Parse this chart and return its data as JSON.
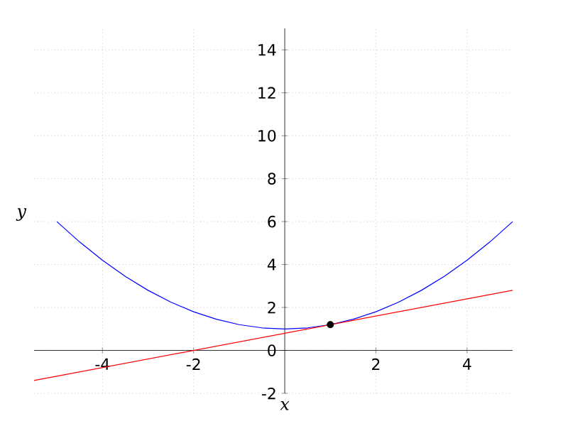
{
  "chart_data": {
    "type": "line",
    "xlabel": "x",
    "ylabel": "y",
    "series": [
      {
        "color": "#0000ff",
        "marker": "none",
        "x": [
          -5,
          -4.5,
          -4,
          -3.5,
          -3,
          -2.5,
          -2,
          -1.5,
          -1,
          -0.5,
          0,
          0.5,
          1,
          1.5,
          2,
          2.5,
          3,
          3.5,
          4,
          4.5,
          5
        ],
        "values": [
          6,
          5.05,
          4.2,
          3.45,
          2.8,
          2.25,
          1.8,
          1.45,
          1.2,
          1.05,
          1,
          1.05,
          1.2,
          1.45,
          1.8,
          2.25,
          2.8,
          3.45,
          4.2,
          5.05,
          6
        ]
      },
      {
        "color": "#ff0000",
        "marker": "none",
        "x": [
          -5.5,
          5
        ],
        "values": [
          -1.4,
          2.8
        ]
      },
      {
        "type": "scatter",
        "color": "#000000",
        "marker": "circle",
        "x": [
          1
        ],
        "values": [
          1.2
        ]
      }
    ],
    "xlim": [
      -5.5,
      5
    ],
    "ylim": [
      -2,
      15
    ],
    "xticks": [
      -4,
      -2,
      2,
      4
    ],
    "yticks": [
      -2,
      0,
      2,
      4,
      6,
      8,
      10,
      12,
      14
    ],
    "grid": true
  }
}
